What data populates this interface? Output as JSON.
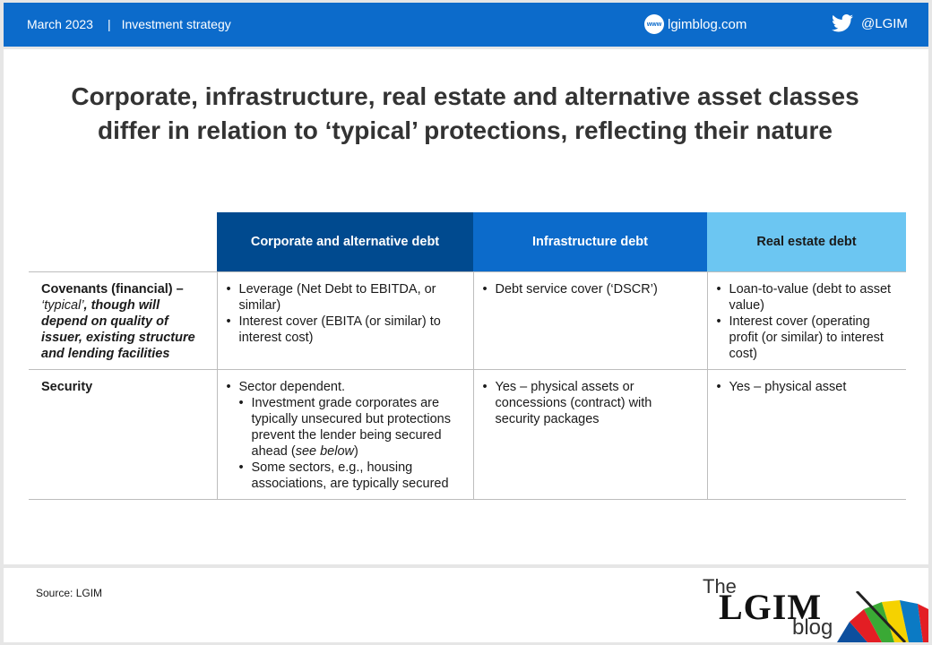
{
  "header": {
    "date": "March 2023",
    "separator": "|",
    "category": "Investment strategy",
    "website_icon": "www",
    "website": "lgimblog.com",
    "twitter_icon": "twitter-icon",
    "twitter": "@LGIM"
  },
  "title": "Corporate, infrastructure, real estate and alternative asset classes differ in relation to ‘typical’ protections, reflecting their nature",
  "table": {
    "columns": [
      "Corporate and alternative debt",
      "Infrastructure debt",
      "Real estate debt"
    ],
    "rows": [
      {
        "head": "Covenants (financial) –",
        "note_prefix": "‘typical’",
        "note_rest": ", though will depend on quality of issuer, existing structure and lending facilities",
        "cells": [
          [
            "Leverage (Net Debt to EBITDA, or similar)",
            "Interest cover (EBITA (or similar) to interest cost)"
          ],
          [
            "Debt service cover (‘DSCR’)"
          ],
          [
            "Loan-to-value (debt to asset value)",
            "Interest cover (operating profit (or similar) to interest cost)"
          ]
        ]
      },
      {
        "head": "Security",
        "cell1_main": "Sector dependent.",
        "cell1_sub1_text": "Investment grade corporates are typically unsecured but protections prevent the lender being secured ahead (",
        "cell1_sub1_italic": "see below",
        "cell1_sub1_end": ")",
        "cell1_sub2": "Some sectors, e.g., housing associations, are typically secured",
        "cell2": "Yes – physical assets or concessions (contract) with security packages",
        "cell3": "Yes – physical asset"
      }
    ]
  },
  "footer": {
    "source": "Source: LGIM",
    "logo_the": "The",
    "logo_lgim": "LGIM",
    "logo_blog": "blog"
  }
}
